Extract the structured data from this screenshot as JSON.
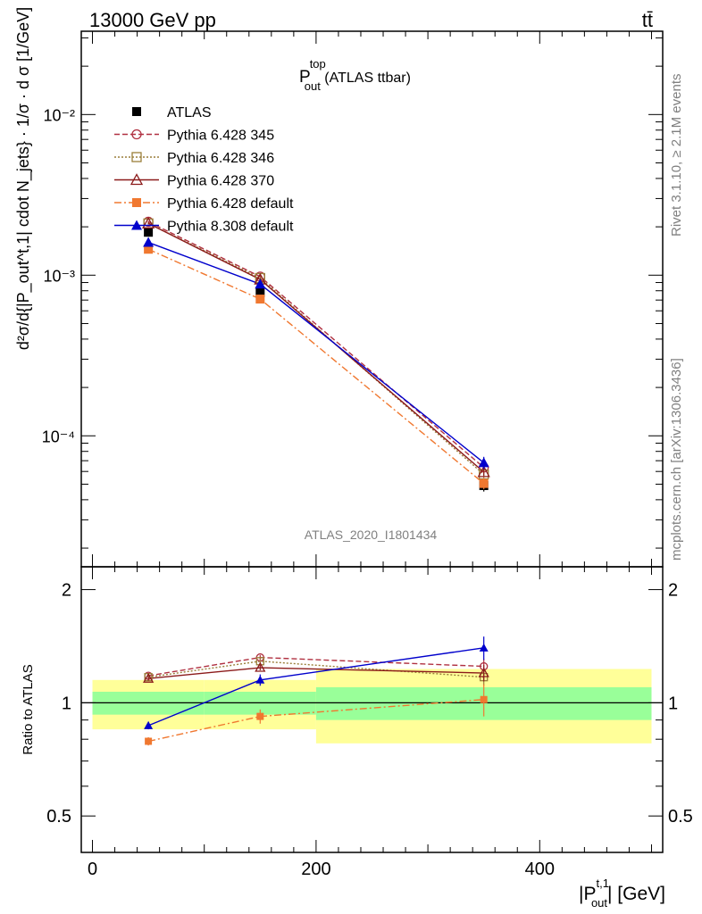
{
  "header": {
    "left": "13000 GeV pp",
    "right": "tt̄"
  },
  "title": {
    "main": "P",
    "sup": "top",
    "sub": "out",
    "suffix": " (ATLAS ttbar)"
  },
  "side": {
    "rivet": "Rivet 3.1.10, ≥ 2.1M events",
    "mcplots": "mcplots.cern.ch [arXiv:1306.3436]"
  },
  "watermark": "ATLAS_2020_I1801434",
  "ylabel_main": "d²σ/d{|P_out^t,1| cdot N_jets} · 1/σ · d σ [1/GeV]",
  "ylabel_ratio": "Ratio to ATLAS",
  "xlabel": {
    "main": "|P",
    "sup": "t,1",
    "sub": "out",
    "suffix": "| [GeV]"
  },
  "colors": {
    "data": "#000000",
    "p345": "#b03040",
    "p346": "#9a7f3a",
    "p370": "#8b1a1a",
    "p6def": "#f07830",
    "p8def": "#0000cc",
    "band_inner": "#99ff99",
    "band_outer": "#ffff99"
  },
  "chart_data": {
    "type": "line",
    "x": [
      50,
      150,
      350
    ],
    "bins": [
      [
        0,
        100
      ],
      [
        100,
        200
      ],
      [
        200,
        500
      ]
    ],
    "xlim": [
      -10,
      510
    ],
    "ylim_main": [
      1.53e-05,
      0.033
    ],
    "yscale_main": "log",
    "ylim_ratio": [
      0.4,
      2.3
    ],
    "xticks": [
      0,
      200,
      400
    ],
    "yticks_main": [
      "10⁻²",
      "10⁻³",
      "10⁻⁴"
    ],
    "yticks_main_values": [
      0.01,
      0.001,
      0.0001
    ],
    "yticks_ratio": [
      0.5,
      1,
      2
    ],
    "legend_position": "top-left",
    "series": [
      {
        "key": "data",
        "name": "ATLAS",
        "values": [
          0.00185,
          0.00078,
          4.9e-05
        ],
        "errors": [
          7e-05,
          3e-05,
          4e-06
        ],
        "ratio": [
          1,
          1,
          1
        ],
        "ratio_err": [
          0,
          0,
          0
        ]
      },
      {
        "key": "p345",
        "name": "Pythia 6.428 345",
        "values": [
          0.00215,
          0.00098,
          6.35e-05
        ],
        "errors": [
          3e-05,
          2e-05,
          3e-06
        ],
        "ratio": [
          1.18,
          1.32,
          1.25
        ],
        "ratio_err": [
          0.015,
          0.02,
          0.06
        ]
      },
      {
        "key": "p346",
        "name": "Pythia 6.428 346",
        "values": [
          0.0021,
          0.00096,
          5.75e-05
        ],
        "errors": [
          3e-05,
          2e-05,
          3e-06
        ],
        "ratio": [
          1.17,
          1.29,
          1.17
        ],
        "ratio_err": [
          0.015,
          0.02,
          0.06
        ]
      },
      {
        "key": "p370",
        "name": "Pythia 6.428 370",
        "values": [
          0.0021,
          0.00094,
          5.95e-05
        ],
        "errors": [
          3e-05,
          2e-05,
          3e-06
        ],
        "ratio": [
          1.16,
          1.24,
          1.2
        ],
        "ratio_err": [
          0.015,
          0.02,
          0.06
        ]
      },
      {
        "key": "p6def",
        "name": "Pythia 6.428 default",
        "values": [
          0.00145,
          0.00071,
          5.05e-05
        ],
        "errors": [
          3e-05,
          2e-05,
          4e-06
        ],
        "ratio": [
          0.79,
          0.92,
          1.02
        ],
        "ratio_err": [
          0.02,
          0.04,
          0.1
        ]
      },
      {
        "key": "p8def",
        "name": "Pythia 8.308 default",
        "values": [
          0.0016,
          0.00088,
          6.8e-05
        ],
        "errors": [
          3e-05,
          2e-05,
          6e-06
        ],
        "ratio": [
          0.87,
          1.15,
          1.4
        ],
        "ratio_err": [
          0.02,
          0.04,
          0.1
        ]
      }
    ],
    "bands": {
      "inner": [
        [
          0.93,
          1.07
        ],
        [
          0.93,
          1.07
        ],
        [
          0.9,
          1.1
        ]
      ],
      "outer": [
        [
          0.85,
          1.15
        ],
        [
          0.85,
          1.15
        ],
        [
          0.78,
          1.23
        ]
      ]
    }
  }
}
